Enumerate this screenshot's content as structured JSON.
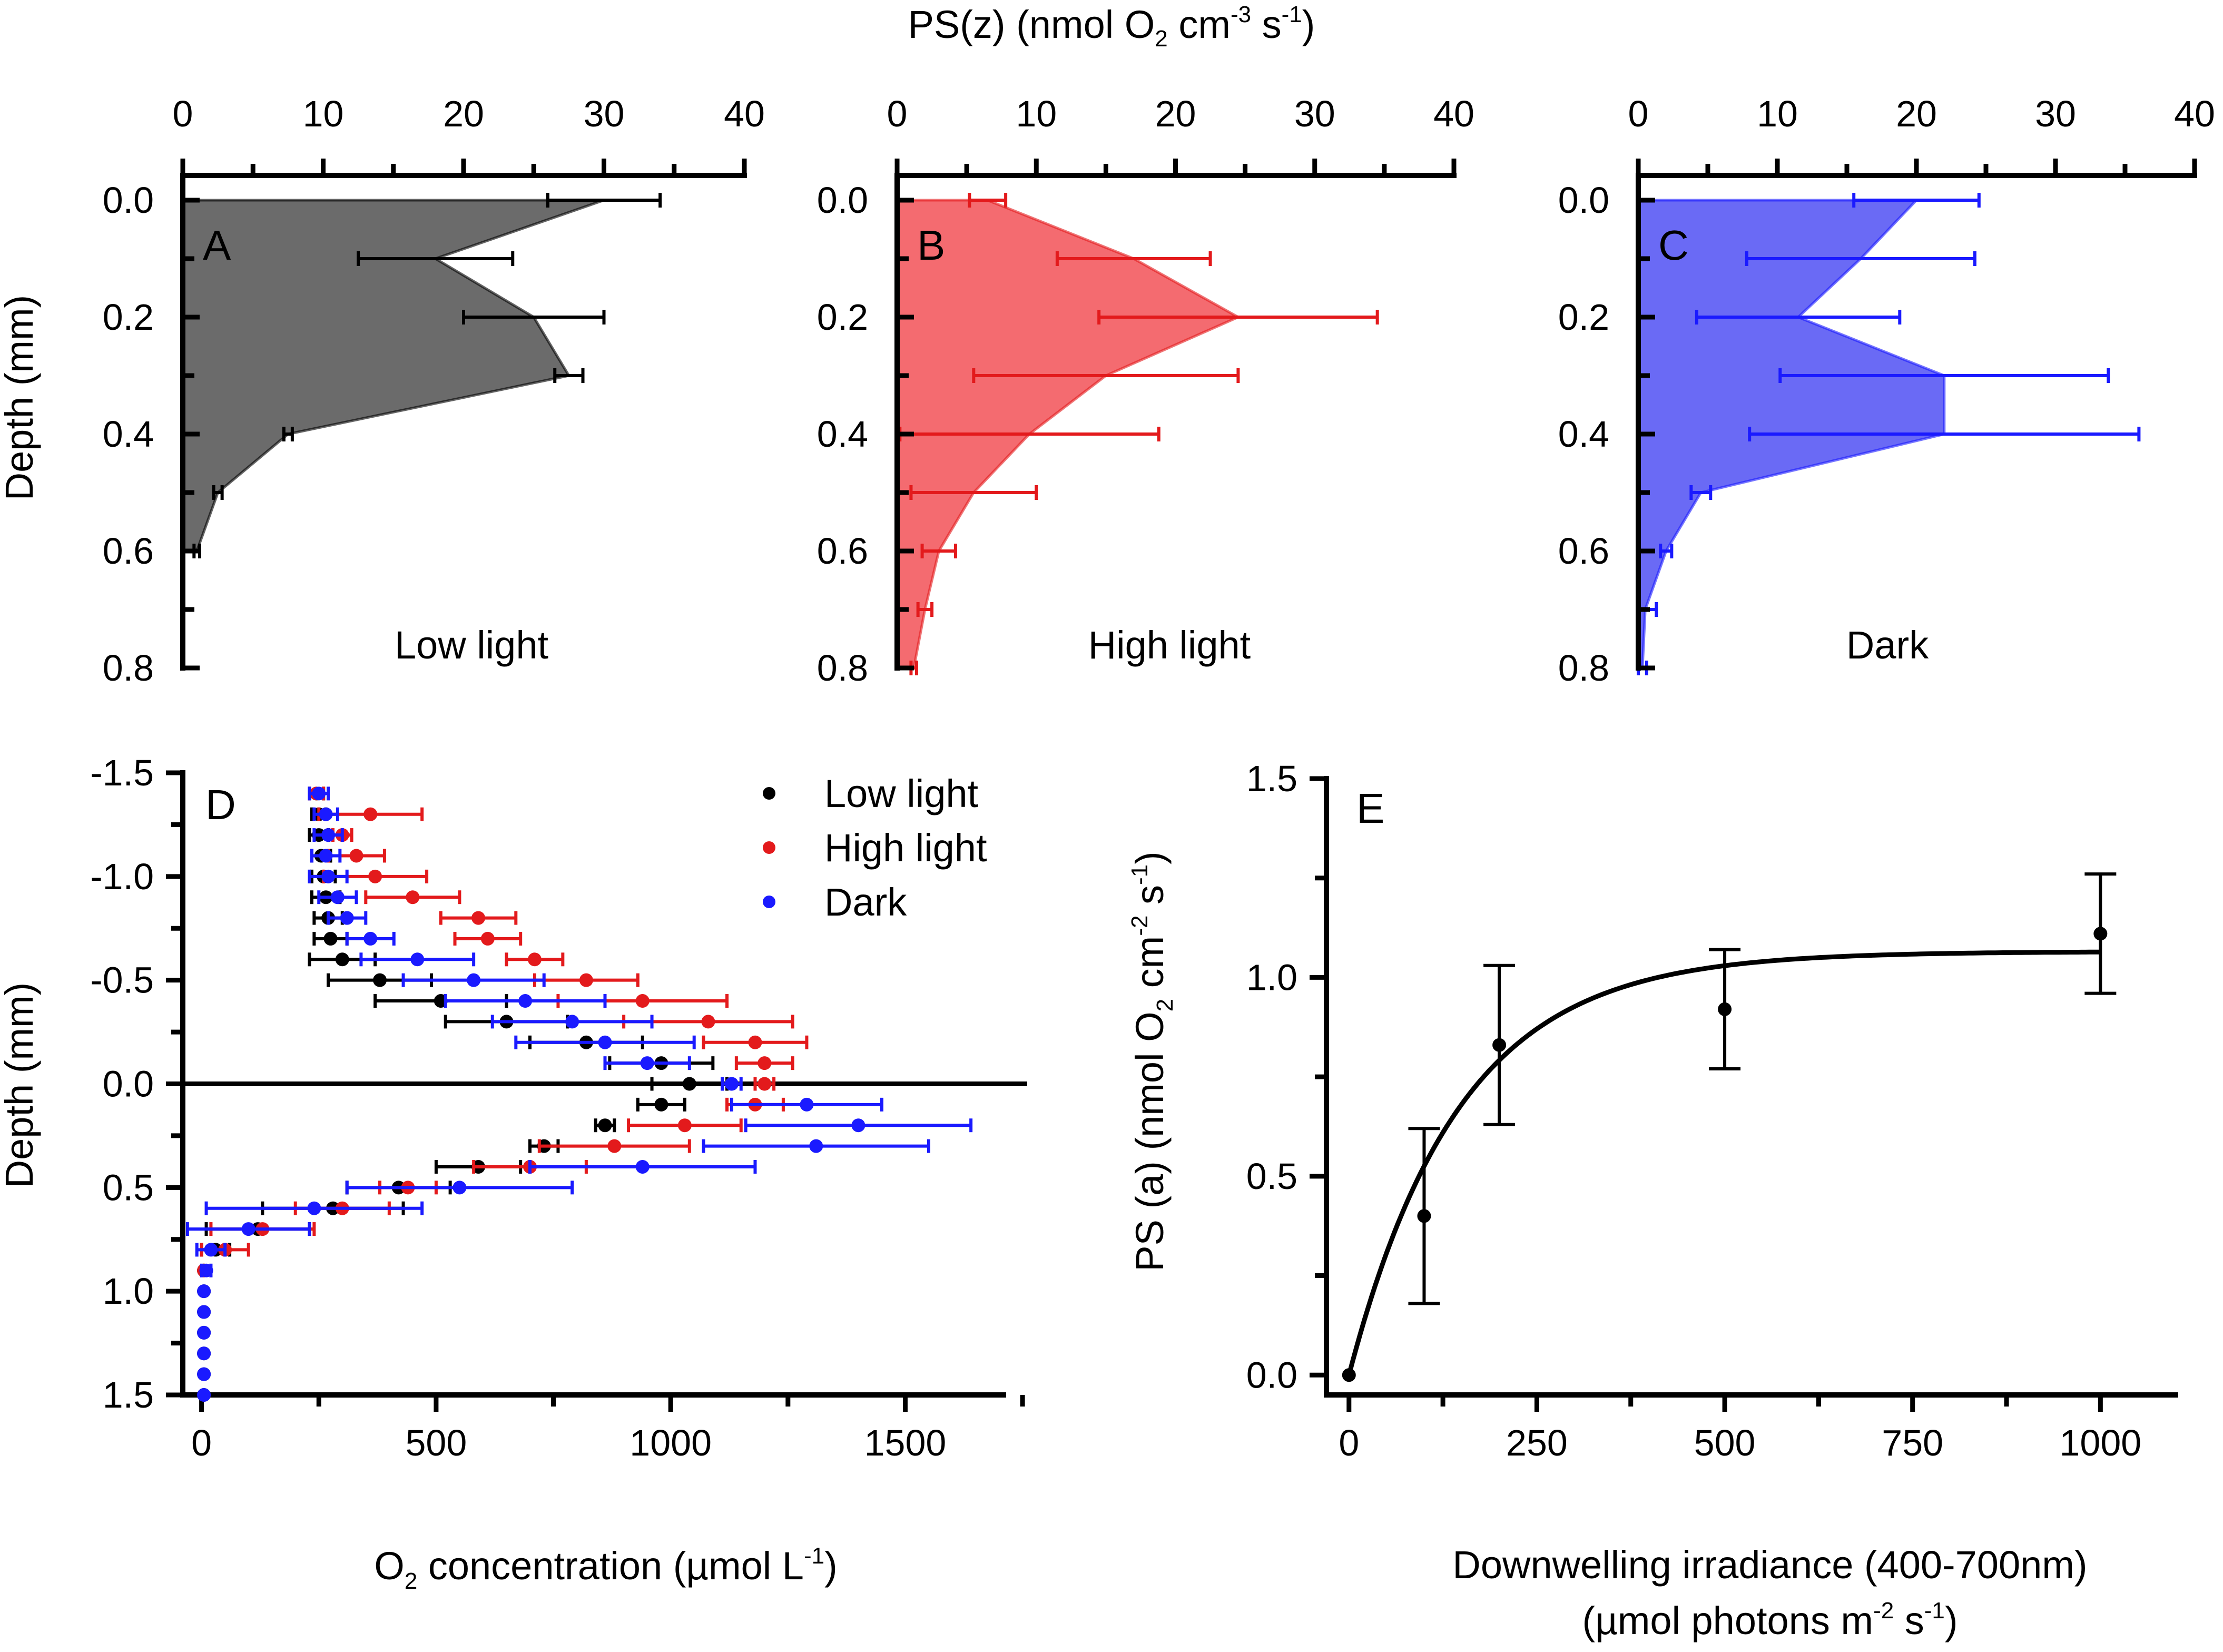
{
  "figure": {
    "top_axis_label": {
      "main": "PS(z) (nmol O",
      "sub": "2",
      "mid": " cm",
      "sup1": "-3",
      "mid2": " s",
      "sup2": "-1",
      "end": ")"
    },
    "depth_label": "Depth (mm)"
  },
  "colors": {
    "low": "#000000",
    "high": "#e31a1c",
    "dark": "#1a1aff",
    "fill_low": "#6b6b6b",
    "fill_high": "#f46b70",
    "fill_dark": "#6a6af5"
  },
  "chart_data": [
    {
      "type": "area",
      "panel": "A",
      "condition": "Low light",
      "x_ticks": [
        "0",
        "10",
        "20",
        "30",
        "40"
      ],
      "xlim": [
        0,
        40
      ],
      "y_ticks": [
        "0.0",
        "0.2",
        "0.4",
        "0.6",
        "0.8"
      ],
      "ylim": [
        0.8,
        0.0
      ],
      "depth": [
        0.0,
        0.1,
        0.2,
        0.3,
        0.4,
        0.5,
        0.6
      ],
      "ps": [
        30,
        18,
        25,
        27.5,
        7.5,
        2.5,
        1
      ],
      "err": [
        4,
        5.5,
        5,
        1,
        0.3,
        0.3,
        0.2
      ]
    },
    {
      "type": "area",
      "panel": "B",
      "condition": "High light",
      "x_ticks": [
        "0",
        "10",
        "20",
        "30",
        "40"
      ],
      "xlim": [
        0,
        40
      ],
      "y_ticks": [
        "0.0",
        "0.2",
        "0.4",
        "0.6",
        "0.8"
      ],
      "ylim": [
        0.8,
        0.0
      ],
      "depth": [
        0.0,
        0.1,
        0.2,
        0.3,
        0.4,
        0.5,
        0.6,
        0.7,
        0.8
      ],
      "ps": [
        6.5,
        17,
        24.5,
        15,
        9.5,
        5.5,
        3,
        2,
        1.2
      ],
      "err": [
        1.3,
        5.5,
        10,
        9.5,
        9.3,
        4.5,
        1.2,
        0.5,
        0.2
      ]
    },
    {
      "type": "area",
      "panel": "C",
      "condition": "Dark",
      "x_ticks": [
        "0",
        "10",
        "20",
        "30",
        "40"
      ],
      "xlim": [
        0,
        40
      ],
      "y_ticks": [
        "0.0",
        "0.2",
        "0.4",
        "0.6",
        "0.8"
      ],
      "ylim": [
        0.8,
        0.0
      ],
      "depth": [
        0.0,
        0.1,
        0.2,
        0.3,
        0.4,
        0.5,
        0.6,
        0.7,
        0.8
      ],
      "ps": [
        20,
        16,
        11.5,
        22,
        22,
        4.5,
        2,
        0.5,
        0.3
      ],
      "err": [
        4.5,
        8.2,
        7.3,
        11.8,
        14,
        0.7,
        0.4,
        0.8,
        0.3
      ]
    },
    {
      "type": "scatter",
      "panel": "D",
      "xlabel": {
        "pre": "O",
        "sub": "2",
        "mid": " concentration (µmol L",
        "sup": "-1",
        "end": ")"
      },
      "ylabel": "Depth (mm)",
      "x_ticks": [
        "0",
        "500",
        "1000",
        "1500"
      ],
      "xlim": [
        -40,
        1760
      ],
      "y_ticks": [
        "-1.5",
        "-1.0",
        "-0.5",
        "0.0",
        "0.5",
        "1.0",
        "1.5"
      ],
      "ylim": [
        1.5,
        -1.5
      ],
      "legend": [
        "Low light",
        "High light",
        "Dark"
      ],
      "depth": [
        -1.4,
        -1.3,
        -1.2,
        -1.1,
        -1.0,
        -0.9,
        -0.8,
        -0.7,
        -0.6,
        -0.5,
        -0.4,
        -0.3,
        -0.2,
        -0.1,
        0.0,
        0.1,
        0.2,
        0.3,
        0.4,
        0.5,
        0.6,
        0.7,
        0.8,
        0.9,
        1.0,
        1.1,
        1.2,
        1.3,
        1.4,
        1.5
      ],
      "series": [
        {
          "name": "Low light",
          "values": [
            245,
            250,
            250,
            255,
            260,
            265,
            270,
            275,
            300,
            380,
            510,
            650,
            820,
            980,
            1040,
            980,
            860,
            730,
            590,
            420,
            280,
            120,
            30,
            5,
            5,
            5,
            5,
            5,
            5,
            5
          ],
          "err": [
            15,
            15,
            20,
            20,
            25,
            30,
            30,
            35,
            70,
            110,
            140,
            130,
            120,
            110,
            80,
            50,
            20,
            30,
            90,
            110,
            150,
            110,
            30,
            5,
            5,
            5,
            5,
            5,
            5,
            5
          ]
        },
        {
          "name": "High light",
          "values": [
            245,
            360,
            300,
            330,
            370,
            450,
            590,
            610,
            710,
            820,
            940,
            1080,
            1180,
            1200,
            1200,
            1180,
            1030,
            880,
            700,
            440,
            300,
            130,
            50,
            5,
            5,
            5,
            5,
            5,
            5,
            5
          ],
          "err": [
            15,
            110,
            20,
            60,
            110,
            100,
            80,
            70,
            60,
            110,
            180,
            180,
            110,
            60,
            20,
            60,
            120,
            160,
            120,
            60,
            100,
            110,
            50,
            5,
            5,
            5,
            5,
            5,
            5,
            5
          ],
          "hidden_from": 24
        },
        {
          "name": "Dark",
          "values": [
            250,
            265,
            270,
            265,
            270,
            290,
            310,
            360,
            460,
            580,
            690,
            790,
            860,
            950,
            1130,
            1290,
            1400,
            1310,
            940,
            550,
            240,
            100,
            20,
            10,
            5,
            5,
            5,
            5,
            5,
            5
          ],
          "err": [
            20,
            25,
            30,
            30,
            40,
            40,
            40,
            50,
            120,
            150,
            170,
            170,
            190,
            90,
            20,
            160,
            240,
            240,
            240,
            240,
            230,
            130,
            30,
            10,
            5,
            5,
            5,
            5,
            5,
            5
          ]
        }
      ]
    },
    {
      "type": "scatter",
      "panel": "E",
      "xlabel": "Downwelling irradiance (400-700nm)",
      "xlabel2": {
        "pre": "(µmol photons m",
        "sup1": "-2",
        "mid": " s",
        "sup2": "-1",
        "end": ")"
      },
      "ylabel": {
        "pre": "PS (a) (nmol O",
        "sub": "2",
        "mid": " cm",
        "sup1": "-2",
        "mid2": " s",
        "sup2": "-1",
        "end": ")"
      },
      "x_ticks": [
        "0",
        "250",
        "500",
        "750",
        "1000"
      ],
      "xlim": [
        -30,
        1100
      ],
      "y_ticks": [
        "0.0",
        "0.5",
        "1.0",
        "1.5"
      ],
      "ylim": [
        -0.05,
        1.5
      ],
      "x": [
        0,
        100,
        200,
        500,
        1000
      ],
      "y": [
        0,
        0.4,
        0.83,
        0.92,
        1.11
      ],
      "err": [
        0,
        0.22,
        0.2,
        0.15,
        0.15
      ],
      "fit": {
        "model": "exponential saturation",
        "psmax": 1.065,
        "k": 0.0068
      }
    }
  ]
}
